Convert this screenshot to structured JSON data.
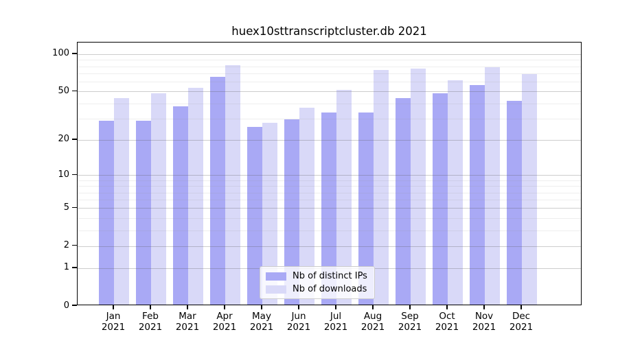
{
  "title": "huex10sttranscriptcluster.db 2021",
  "colors": {
    "distinct_ips": "#a9a9f5",
    "downloads": "#d9d9f8",
    "axis": "#000000"
  },
  "legend": {
    "items": [
      {
        "label": "Nb of distinct IPs",
        "color_key": "distinct_ips"
      },
      {
        "label": "Nb of downloads",
        "color_key": "downloads"
      }
    ]
  },
  "y_axis": {
    "tick_labels": [
      "100",
      "50",
      "20",
      "10",
      "5",
      "2",
      "1",
      "0"
    ],
    "tick_values": [
      100,
      50,
      20,
      10,
      5,
      2,
      1,
      0
    ],
    "minor_tick_values": [
      3,
      4,
      6,
      7,
      8,
      9,
      30,
      40,
      60,
      70,
      80,
      90
    ],
    "scale": "log10(1+v)",
    "max": 124
  },
  "x_axis": {
    "categories": [
      {
        "month": "Jan",
        "year": "2021"
      },
      {
        "month": "Feb",
        "year": "2021"
      },
      {
        "month": "Mar",
        "year": "2021"
      },
      {
        "month": "Apr",
        "year": "2021"
      },
      {
        "month": "May",
        "year": "2021"
      },
      {
        "month": "Jun",
        "year": "2021"
      },
      {
        "month": "Jul",
        "year": "2021"
      },
      {
        "month": "Aug",
        "year": "2021"
      },
      {
        "month": "Sep",
        "year": "2021"
      },
      {
        "month": "Oct",
        "year": "2021"
      },
      {
        "month": "Nov",
        "year": "2021"
      },
      {
        "month": "Dec",
        "year": "2021"
      }
    ]
  },
  "chart_data": {
    "type": "bar",
    "title": "huex10sttranscriptcluster.db 2021",
    "categories": [
      "Jan 2021",
      "Feb 2021",
      "Mar 2021",
      "Apr 2021",
      "May 2021",
      "Jun 2021",
      "Jul 2021",
      "Aug 2021",
      "Sep 2021",
      "Oct 2021",
      "Nov 2021",
      "Dec 2021"
    ],
    "series": [
      {
        "name": "Nb of distinct IPs",
        "color_key": "distinct_ips",
        "values": [
          28,
          28,
          37,
          64,
          25,
          29,
          33,
          33,
          43,
          47,
          55,
          41
        ]
      },
      {
        "name": "Nb of downloads",
        "color_key": "downloads",
        "values": [
          43,
          47,
          52,
          80,
          27,
          36,
          50,
          73,
          75,
          60,
          77,
          67
        ]
      }
    ],
    "xlabel": "",
    "ylabel": "",
    "y_scale": "log10(1+v)",
    "yticks": [
      0,
      1,
      2,
      5,
      10,
      20,
      50,
      100
    ],
    "ylim": [
      0,
      124
    ],
    "grid": true,
    "legend_position": "bottom-center"
  }
}
